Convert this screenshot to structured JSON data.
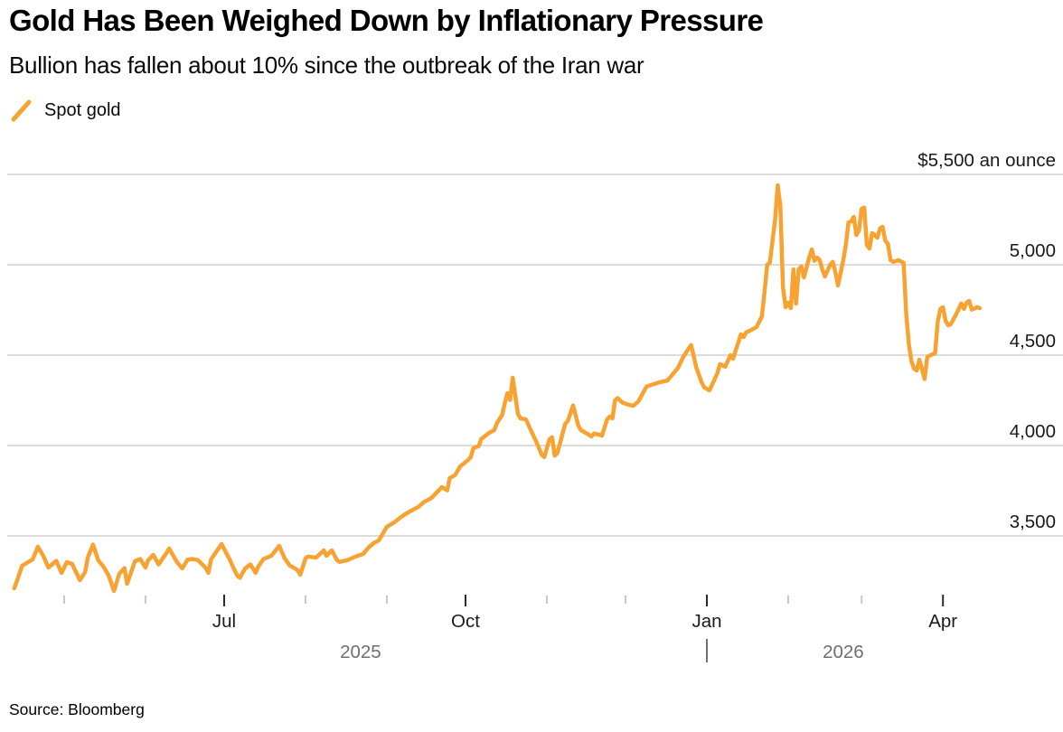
{
  "header": {
    "title": "Gold Has Been Weighed Down by Inflationary Pressure",
    "subtitle": "Bullion has fallen about 10% since the outbreak of the Iran war"
  },
  "legend": {
    "label": "Spot gold",
    "marker_color": "#F8A232"
  },
  "source": "Source: Bloomberg",
  "colors": {
    "line": "#F8A232",
    "gridline": "#dcdcdc",
    "minor_tick": "#c7c7c7",
    "major_tick": "#2b2b2b",
    "axis_text": "#1a1a1a",
    "year_text": "#6f6f6f"
  },
  "chart_data": {
    "type": "line",
    "title": "Gold Has Been Weighed Down by Inflationary Pressure",
    "xlabel": "",
    "ylabel": "$5,500 an ounce",
    "grid": true,
    "legend_position": "top-left",
    "y_axis": {
      "ylim": [
        3100,
        5500
      ],
      "gridline_values": [
        5500,
        5000,
        4500,
        4000,
        3500
      ],
      "tick_labels": {
        "5500": "$5,500 an ounce",
        "5000": "5,000",
        "4500": "4,500",
        "4000": "4,000",
        "3500": "3,500"
      }
    },
    "x_axis": {
      "major_ticks": [
        {
          "date": "2025-07-01",
          "label": "Jul"
        },
        {
          "date": "2025-10-01",
          "label": "Oct"
        },
        {
          "date": "2026-01-01",
          "label": "Jan"
        },
        {
          "date": "2026-04-01",
          "label": "Apr"
        }
      ],
      "minor_ticks": [
        "2025-05-01",
        "2025-06-01",
        "2025-08-01",
        "2025-09-01",
        "2025-11-01",
        "2025-12-01",
        "2026-02-01",
        "2026-03-01"
      ],
      "years": [
        {
          "label": "2025"
        },
        {
          "label": "2026"
        }
      ],
      "year_divider": "|"
    },
    "series": [
      {
        "name": "Spot gold",
        "color": "#F8A232",
        "unit": "USD per ounce",
        "points": [
          [
            "2025-04-12",
            3210
          ],
          [
            "2025-04-13",
            3250
          ],
          [
            "2025-04-15",
            3335
          ],
          [
            "2025-04-19",
            3370
          ],
          [
            "2025-04-21",
            3440
          ],
          [
            "2025-04-23",
            3390
          ],
          [
            "2025-04-25",
            3325
          ],
          [
            "2025-04-28",
            3362
          ],
          [
            "2025-04-30",
            3295
          ],
          [
            "2025-05-02",
            3355
          ],
          [
            "2025-05-04",
            3345
          ],
          [
            "2025-05-07",
            3255
          ],
          [
            "2025-05-09",
            3300
          ],
          [
            "2025-05-10",
            3380
          ],
          [
            "2025-05-12",
            3452
          ],
          [
            "2025-05-14",
            3365
          ],
          [
            "2025-05-16",
            3330
          ],
          [
            "2025-05-18",
            3280
          ],
          [
            "2025-05-20",
            3195
          ],
          [
            "2025-05-22",
            3290
          ],
          [
            "2025-05-24",
            3322
          ],
          [
            "2025-05-25",
            3235
          ],
          [
            "2025-05-28",
            3360
          ],
          [
            "2025-05-30",
            3372
          ],
          [
            "2025-06-01",
            3325
          ],
          [
            "2025-06-02",
            3365
          ],
          [
            "2025-06-04",
            3395
          ],
          [
            "2025-06-06",
            3342
          ],
          [
            "2025-06-09",
            3405
          ],
          [
            "2025-06-10",
            3430
          ],
          [
            "2025-06-13",
            3355
          ],
          [
            "2025-06-15",
            3320
          ],
          [
            "2025-06-17",
            3368
          ],
          [
            "2025-06-19",
            3372
          ],
          [
            "2025-06-21",
            3366
          ],
          [
            "2025-06-24",
            3322
          ],
          [
            "2025-06-25",
            3296
          ],
          [
            "2025-06-26",
            3370
          ],
          [
            "2025-06-30",
            3455
          ],
          [
            "2025-07-03",
            3372
          ],
          [
            "2025-07-04",
            3340
          ],
          [
            "2025-07-06",
            3280
          ],
          [
            "2025-07-07",
            3268
          ],
          [
            "2025-07-09",
            3320
          ],
          [
            "2025-07-11",
            3342
          ],
          [
            "2025-07-13",
            3296
          ],
          [
            "2025-07-14",
            3330
          ],
          [
            "2025-07-16",
            3372
          ],
          [
            "2025-07-19",
            3390
          ],
          [
            "2025-07-22",
            3445
          ],
          [
            "2025-07-24",
            3376
          ],
          [
            "2025-07-26",
            3336
          ],
          [
            "2025-07-28",
            3320
          ],
          [
            "2025-07-29",
            3310
          ],
          [
            "2025-07-30",
            3285
          ],
          [
            "2025-08-01",
            3376
          ],
          [
            "2025-08-02",
            3386
          ],
          [
            "2025-08-05",
            3380
          ],
          [
            "2025-08-08",
            3420
          ],
          [
            "2025-08-09",
            3390
          ],
          [
            "2025-08-11",
            3420
          ],
          [
            "2025-08-13",
            3366
          ],
          [
            "2025-08-14",
            3356
          ],
          [
            "2025-08-17",
            3366
          ],
          [
            "2025-08-20",
            3385
          ],
          [
            "2025-08-23",
            3400
          ],
          [
            "2025-08-25",
            3435
          ],
          [
            "2025-08-27",
            3460
          ],
          [
            "2025-08-29",
            3476
          ],
          [
            "2025-08-30",
            3500
          ],
          [
            "2025-09-01",
            3550
          ],
          [
            "2025-09-04",
            3576
          ],
          [
            "2025-09-06",
            3600
          ],
          [
            "2025-09-08",
            3620
          ],
          [
            "2025-09-11",
            3645
          ],
          [
            "2025-09-13",
            3660
          ],
          [
            "2025-09-15",
            3686
          ],
          [
            "2025-09-18",
            3710
          ],
          [
            "2025-09-20",
            3740
          ],
          [
            "2025-09-22",
            3770
          ],
          [
            "2025-09-24",
            3752
          ],
          [
            "2025-09-25",
            3820
          ],
          [
            "2025-09-27",
            3836
          ],
          [
            "2025-09-29",
            3885
          ],
          [
            "2025-10-02",
            3920
          ],
          [
            "2025-10-03",
            3936
          ],
          [
            "2025-10-04",
            3986
          ],
          [
            "2025-10-06",
            3996
          ],
          [
            "2025-10-07",
            4036
          ],
          [
            "2025-10-10",
            4070
          ],
          [
            "2025-10-12",
            4086
          ],
          [
            "2025-10-13",
            4125
          ],
          [
            "2025-10-15",
            4170
          ],
          [
            "2025-10-16",
            4235
          ],
          [
            "2025-10-17",
            4290
          ],
          [
            "2025-10-18",
            4252
          ],
          [
            "2025-10-19",
            4375
          ],
          [
            "2025-10-21",
            4175
          ],
          [
            "2025-10-22",
            4150
          ],
          [
            "2025-10-24",
            4145
          ],
          [
            "2025-10-27",
            4050
          ],
          [
            "2025-10-28",
            4020
          ],
          [
            "2025-10-30",
            3950
          ],
          [
            "2025-10-31",
            3936
          ],
          [
            "2025-11-02",
            4035
          ],
          [
            "2025-11-03",
            4046
          ],
          [
            "2025-11-04",
            3944
          ],
          [
            "2025-11-05",
            3958
          ],
          [
            "2025-11-08",
            4120
          ],
          [
            "2025-11-09",
            4136
          ],
          [
            "2025-11-11",
            4222
          ],
          [
            "2025-11-13",
            4110
          ],
          [
            "2025-11-14",
            4085
          ],
          [
            "2025-11-17",
            4060
          ],
          [
            "2025-11-18",
            4050
          ],
          [
            "2025-11-19",
            4066
          ],
          [
            "2025-11-21",
            4060
          ],
          [
            "2025-11-22",
            4054
          ],
          [
            "2025-11-24",
            4145
          ],
          [
            "2025-11-25",
            4160
          ],
          [
            "2025-11-26",
            4150
          ],
          [
            "2025-11-27",
            4250
          ],
          [
            "2025-11-28",
            4262
          ],
          [
            "2025-11-30",
            4236
          ],
          [
            "2025-12-02",
            4226
          ],
          [
            "2025-12-04",
            4220
          ],
          [
            "2025-12-06",
            4246
          ],
          [
            "2025-12-08",
            4300
          ],
          [
            "2025-12-09",
            4326
          ],
          [
            "2025-12-11",
            4336
          ],
          [
            "2025-12-14",
            4350
          ],
          [
            "2025-12-17",
            4360
          ],
          [
            "2025-12-21",
            4430
          ],
          [
            "2025-12-23",
            4490
          ],
          [
            "2025-12-25",
            4536
          ],
          [
            "2025-12-26",
            4556
          ],
          [
            "2025-12-28",
            4430
          ],
          [
            "2025-12-30",
            4350
          ],
          [
            "2025-12-31",
            4322
          ],
          [
            "2026-01-02",
            4305
          ],
          [
            "2026-01-05",
            4400
          ],
          [
            "2026-01-06",
            4450
          ],
          [
            "2026-01-08",
            4436
          ],
          [
            "2026-01-10",
            4500
          ],
          [
            "2026-01-11",
            4480
          ],
          [
            "2026-01-12",
            4526
          ],
          [
            "2026-01-14",
            4615
          ],
          [
            "2026-01-15",
            4600
          ],
          [
            "2026-01-16",
            4626
          ],
          [
            "2026-01-18",
            4640
          ],
          [
            "2026-01-20",
            4656
          ],
          [
            "2026-01-22",
            4715
          ],
          [
            "2026-01-23",
            4850
          ],
          [
            "2026-01-24",
            5000
          ],
          [
            "2026-01-25",
            5012
          ],
          [
            "2026-01-27",
            5250
          ],
          [
            "2026-01-28",
            5440
          ],
          [
            "2026-01-29",
            5325
          ],
          [
            "2026-01-30",
            4875
          ],
          [
            "2026-01-31",
            4765
          ],
          [
            "2026-02-01",
            4790
          ],
          [
            "2026-02-02",
            4760
          ],
          [
            "2026-02-03",
            4975
          ],
          [
            "2026-02-04",
            4785
          ],
          [
            "2026-02-05",
            4975
          ],
          [
            "2026-02-06",
            4990
          ],
          [
            "2026-02-07",
            4930
          ],
          [
            "2026-02-09",
            5040
          ],
          [
            "2026-02-10",
            5085
          ],
          [
            "2026-02-11",
            5022
          ],
          [
            "2026-02-12",
            5040
          ],
          [
            "2026-02-13",
            5026
          ],
          [
            "2026-02-14",
            4975
          ],
          [
            "2026-02-15",
            4935
          ],
          [
            "2026-02-17",
            5000
          ],
          [
            "2026-02-18",
            5016
          ],
          [
            "2026-02-19",
            4960
          ],
          [
            "2026-02-20",
            4885
          ],
          [
            "2026-02-22",
            5025
          ],
          [
            "2026-02-23",
            5110
          ],
          [
            "2026-02-24",
            5235
          ],
          [
            "2026-02-25",
            5240
          ],
          [
            "2026-02-26",
            5265
          ],
          [
            "2026-02-27",
            5165
          ],
          [
            "2026-02-28",
            5190
          ],
          [
            "2026-03-01",
            5310
          ],
          [
            "2026-03-02",
            5316
          ],
          [
            "2026-03-03",
            5110
          ],
          [
            "2026-03-04",
            5090
          ],
          [
            "2026-03-05",
            5175
          ],
          [
            "2026-03-06",
            5165
          ],
          [
            "2026-03-07",
            5150
          ],
          [
            "2026-03-08",
            5200
          ],
          [
            "2026-03-09",
            5210
          ],
          [
            "2026-03-10",
            5135
          ],
          [
            "2026-03-11",
            5115
          ],
          [
            "2026-03-12",
            5026
          ],
          [
            "2026-03-13",
            5016
          ],
          [
            "2026-03-14",
            5020
          ],
          [
            "2026-03-15",
            5026
          ],
          [
            "2026-03-17",
            5010
          ],
          [
            "2026-03-18",
            4725
          ],
          [
            "2026-03-19",
            4560
          ],
          [
            "2026-03-20",
            4465
          ],
          [
            "2026-03-21",
            4425
          ],
          [
            "2026-03-22",
            4415
          ],
          [
            "2026-03-23",
            4475
          ],
          [
            "2026-03-25",
            4368
          ],
          [
            "2026-03-26",
            4490
          ],
          [
            "2026-03-28",
            4505
          ],
          [
            "2026-03-29",
            4510
          ],
          [
            "2026-03-30",
            4685
          ],
          [
            "2026-03-31",
            4755
          ],
          [
            "2026-04-01",
            4765
          ],
          [
            "2026-04-02",
            4690
          ],
          [
            "2026-04-03",
            4665
          ],
          [
            "2026-04-04",
            4672
          ],
          [
            "2026-04-06",
            4725
          ],
          [
            "2026-04-08",
            4786
          ],
          [
            "2026-04-09",
            4756
          ],
          [
            "2026-04-10",
            4790
          ],
          [
            "2026-04-11",
            4800
          ],
          [
            "2026-04-12",
            4752
          ],
          [
            "2026-04-13",
            4758
          ],
          [
            "2026-04-14",
            4766
          ],
          [
            "2026-04-15",
            4760
          ]
        ]
      }
    ]
  }
}
